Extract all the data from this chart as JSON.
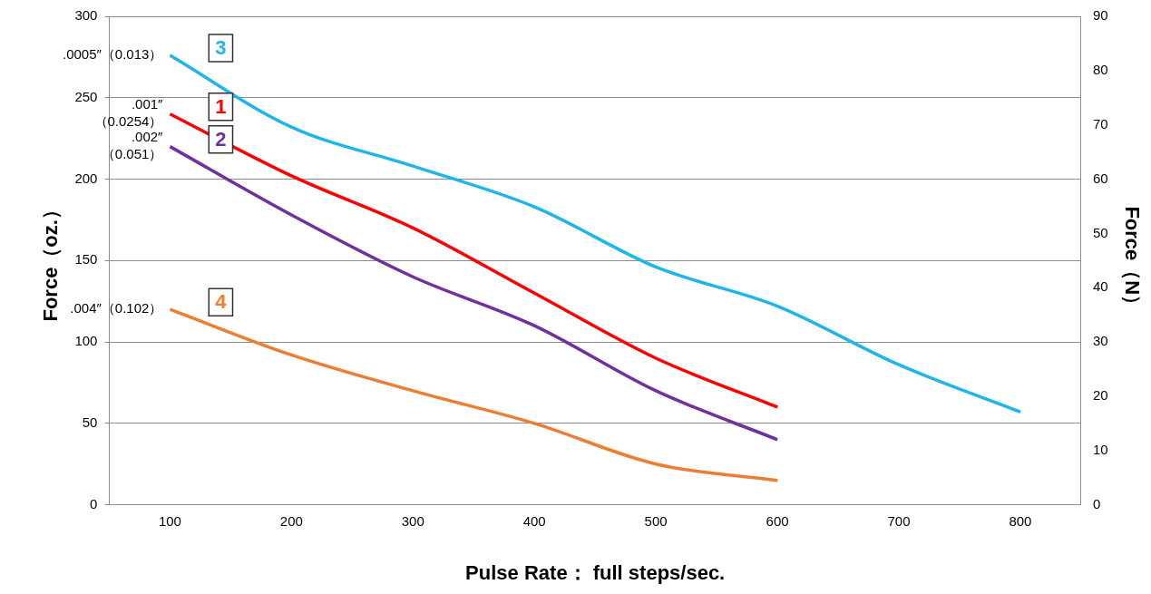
{
  "chart_data": {
    "type": "line",
    "xlabel": "Pulse Rate： full steps/sec.",
    "ylabel": "Force（oz.）",
    "y2label": "Force（N）",
    "categories": [
      "100",
      "200",
      "300",
      "400",
      "500",
      "600",
      "700",
      "800"
    ],
    "series": [
      {
        "name": "3",
        "color": "#1fb5ea",
        "values": [
          276,
          232,
          208,
          183,
          146,
          122,
          86,
          57
        ]
      },
      {
        "name": "1",
        "color": "#ff0000",
        "values": [
          240,
          202,
          170,
          130,
          90,
          60,
          null,
          null
        ]
      },
      {
        "name": "2",
        "color": "#7030a0",
        "values": [
          220,
          178,
          140,
          110,
          70,
          40,
          null,
          null
        ]
      },
      {
        "name": "4",
        "color": "#ed7d31",
        "values": [
          120,
          92,
          70,
          50,
          25,
          15,
          null,
          null
        ]
      }
    ],
    "annotations": [
      {
        "text": ".0005″（0.013）",
        "x": "100",
        "y": 276
      },
      {
        "text": ".001″\n（0.0254）",
        "x": "100",
        "y": 240
      },
      {
        "text": ".002″\n（0.051）",
        "x": "100",
        "y": 220
      },
      {
        "text": ".004″（0.102）",
        "x": "100",
        "y": 120
      }
    ],
    "ylim": [
      0,
      300
    ],
    "yticks": [
      0,
      50,
      100,
      150,
      200,
      250,
      300
    ],
    "y2lim": [
      0,
      90
    ],
    "y2ticks": [
      0,
      10,
      20,
      30,
      40,
      50,
      60,
      70,
      80,
      90
    ],
    "grid": "y",
    "legend": false,
    "marker": "none",
    "line_style": "solid"
  }
}
